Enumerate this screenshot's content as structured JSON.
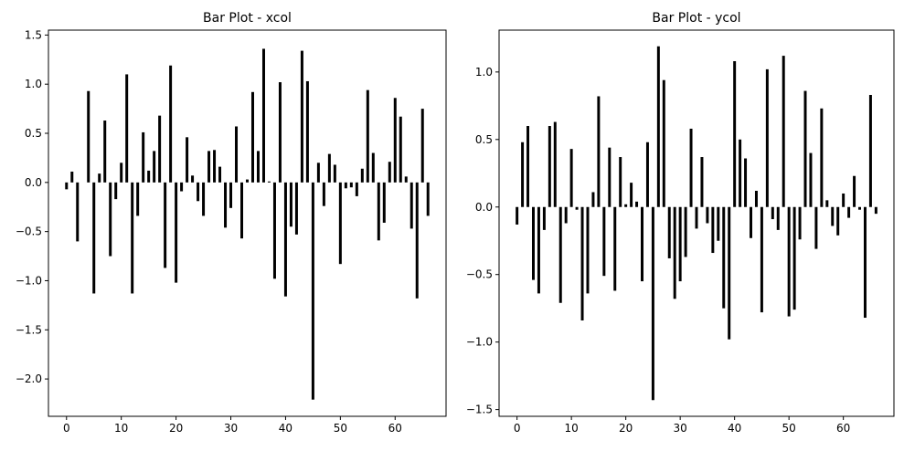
{
  "chart_data": [
    {
      "type": "bar",
      "title": "Bar Plot - xcol",
      "xlabel": "",
      "ylabel": "",
      "x_start": 0,
      "xlim": [
        -3.3,
        69.3
      ],
      "ylim": [
        -2.38,
        1.55
      ],
      "xticks": [
        0,
        10,
        20,
        30,
        40,
        50,
        60
      ],
      "yticks": [
        -2.0,
        -1.5,
        -1.0,
        -0.5,
        0.0,
        0.5,
        1.0,
        1.5
      ],
      "ytick_labels": [
        "−2.0",
        "−1.5",
        "−1.0",
        "−0.5",
        "0.0",
        "0.5",
        "1.0",
        "1.5"
      ],
      "bar_color": "#000000",
      "grid": false,
      "values": [
        -0.07,
        0.11,
        -0.6,
        0.0,
        0.93,
        -1.13,
        0.09,
        0.63,
        -0.75,
        -0.17,
        0.2,
        1.1,
        -1.13,
        -0.34,
        0.51,
        0.12,
        0.32,
        0.68,
        -0.87,
        1.19,
        -1.02,
        -0.09,
        0.46,
        0.07,
        -0.19,
        -0.34,
        0.32,
        0.33,
        0.16,
        -0.46,
        -0.26,
        0.57,
        -0.57,
        0.03,
        0.92,
        0.32,
        1.36,
        0.01,
        -0.98,
        1.02,
        -1.16,
        -0.45,
        -0.53,
        1.34,
        1.03,
        -2.21,
        0.2,
        -0.24,
        0.29,
        0.18,
        -0.83,
        -0.06,
        -0.05,
        -0.14,
        0.14,
        0.94,
        0.3,
        -0.59,
        -0.41,
        0.21,
        0.86,
        0.67,
        0.06,
        -0.47,
        -1.18,
        0.75,
        -0.34
      ]
    },
    {
      "type": "bar",
      "title": "Bar Plot - ycol",
      "xlabel": "",
      "ylabel": "",
      "x_start": 0,
      "xlim": [
        -3.3,
        69.3
      ],
      "ylim": [
        -1.55,
        1.31
      ],
      "xticks": [
        0,
        10,
        20,
        30,
        40,
        50,
        60
      ],
      "yticks": [
        -1.5,
        -1.0,
        -0.5,
        0.0,
        0.5,
        1.0
      ],
      "ytick_labels": [
        "−1.5",
        "−1.0",
        "−0.5",
        "0.0",
        "0.5",
        "1.0"
      ],
      "bar_color": "#000000",
      "grid": false,
      "values": [
        -0.13,
        0.48,
        0.6,
        -0.54,
        -0.64,
        -0.17,
        0.6,
        0.63,
        -0.71,
        -0.12,
        0.43,
        -0.02,
        -0.84,
        -0.64,
        0.11,
        0.82,
        -0.51,
        0.44,
        -0.62,
        0.37,
        0.02,
        0.18,
        0.04,
        -0.55,
        0.48,
        -1.43,
        1.19,
        0.94,
        -0.38,
        -0.68,
        -0.55,
        -0.37,
        0.58,
        -0.16,
        0.37,
        -0.12,
        -0.34,
        -0.25,
        -0.75,
        -0.98,
        1.08,
        0.5,
        0.36,
        -0.23,
        0.12,
        -0.78,
        1.02,
        -0.09,
        -0.17,
        1.12,
        -0.81,
        -0.76,
        -0.24,
        0.86,
        0.4,
        -0.31,
        0.73,
        0.05,
        -0.14,
        -0.21,
        0.1,
        -0.08,
        0.23,
        -0.02,
        -0.82,
        0.83,
        -0.05
      ]
    }
  ]
}
